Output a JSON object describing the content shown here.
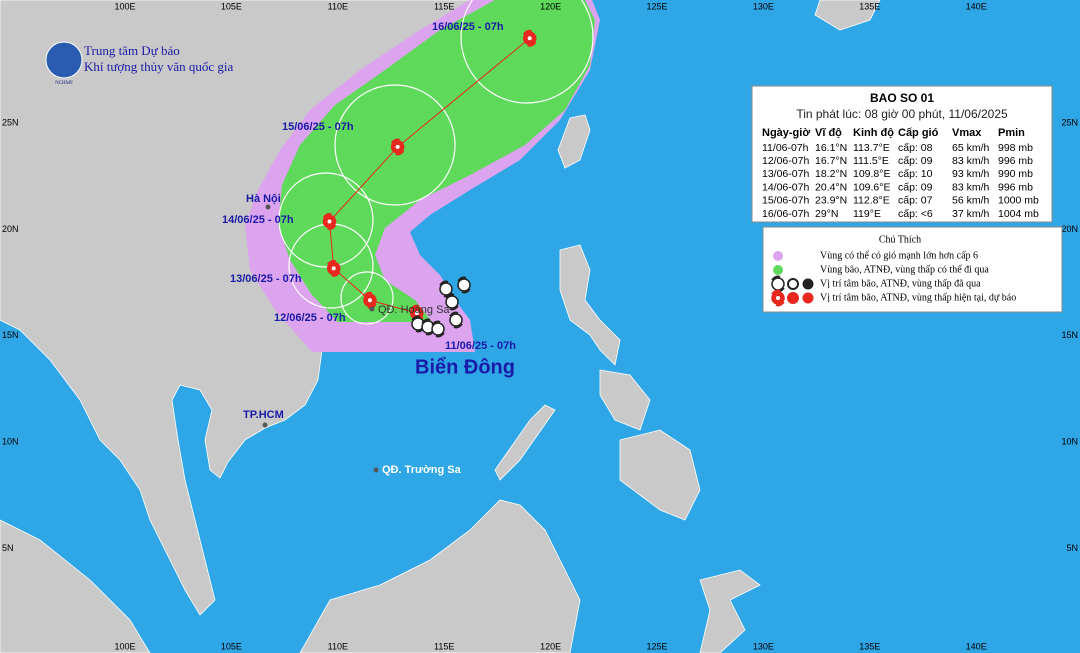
{
  "logo": {
    "line1": "Trung tâm Dự báo",
    "line2": "Khí tượng thủy văn quốc gia",
    "abbr": "NCHMF"
  },
  "axes": {
    "lon_labels": [
      "100E",
      "105E",
      "110E",
      "115E",
      "120E",
      "125E",
      "130E",
      "135E",
      "140E"
    ],
    "lat_labels": [
      "25N",
      "20N",
      "15N",
      "10N",
      "5N"
    ]
  },
  "track_labels": [
    "11/06/25 - 07h",
    "12/06/25 - 07h",
    "13/06/25 - 07h",
    "14/06/25 - 07h",
    "15/06/25 - 07h",
    "16/06/25 - 07h"
  ],
  "places": {
    "hanoi": "Hà Nội",
    "hcm": "TP.HCM",
    "hoangsa": "QĐ. Hoàng Sa",
    "truongsa": "QĐ. Trường Sa",
    "sea": "Biển Đông"
  },
  "bulletin": {
    "title": "BAO SO 01",
    "issued": "Tin phát lúc: 08 giờ 00 phút, 11/06/2025",
    "headers": [
      "Ngày-giờ",
      "Vĩ độ",
      "Kinh độ",
      "Cấp gió",
      "Vmax",
      "Pmin"
    ],
    "rows": [
      [
        "11/06-07h",
        "16.1°N",
        "113.7°E",
        "cấp: 08",
        "65 km/h",
        "998 mb"
      ],
      [
        "12/06-07h",
        "16.7°N",
        "111.5°E",
        "cấp: 09",
        "83 km/h",
        "996 mb"
      ],
      [
        "13/06-07h",
        "18.2°N",
        "109.8°E",
        "cấp: 10",
        "93 km/h",
        "990 mb"
      ],
      [
        "14/06-07h",
        "20.4°N",
        "109.6°E",
        "cấp: 09",
        "83 km/h",
        "996 mb"
      ],
      [
        "15/06-07h",
        "23.9°N",
        "112.8°E",
        "cấp: 07",
        "56 km/h",
        "1000 mb"
      ],
      [
        "16/06-07h",
        "29°N",
        "119°E",
        "cấp: <6",
        "37 km/h",
        "1004 mb"
      ]
    ]
  },
  "legend": {
    "title": "Chú Thích",
    "items": [
      "Vùng có thể có gió mạnh lớn hơn cấp 6",
      "Vùng bão, ATNĐ, vùng thấp có thể đi qua",
      "Vị trí tâm bão, ATNĐ, vùng thấp đã qua",
      "Vị trí tâm bão, ATNĐ, vùng thấp hiện tại, dự báo"
    ]
  }
}
